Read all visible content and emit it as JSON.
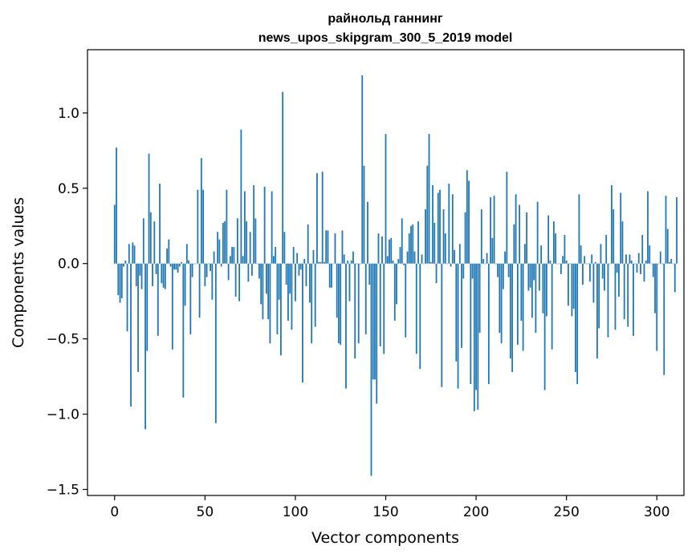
{
  "chart_data": {
    "type": "bar",
    "title_lines": [
      "райнольд ганнинг",
      "news_upos_skipgram_300_5_2019 model"
    ],
    "xlabel": "Vector components",
    "ylabel": "Components values",
    "xlim": [
      -15,
      315
    ],
    "ylim": [
      -1.54,
      1.42
    ],
    "x_ticks": [
      0,
      50,
      100,
      150,
      200,
      250,
      300
    ],
    "x_tick_labels": [
      "0",
      "50",
      "100",
      "150",
      "200",
      "250",
      "300"
    ],
    "y_ticks": [
      -1.5,
      -1.0,
      -0.5,
      0.0,
      0.5,
      1.0
    ],
    "y_tick_labels": [
      "−1.5",
      "−1.0",
      "−0.5",
      "0.0",
      "0.5",
      "1.0"
    ],
    "bar_color": "#1f77b4",
    "grid": false,
    "legend": "none",
    "values": [
      0.39,
      0.77,
      -0.21,
      -0.26,
      -0.23,
      -0.02,
      0.02,
      -0.45,
      0.13,
      -0.95,
      0.14,
      0.12,
      -0.15,
      -0.72,
      -0.08,
      -0.17,
      0.3,
      -1.1,
      -0.58,
      0.73,
      0.34,
      -0.15,
      0.28,
      -0.07,
      -0.48,
      0.53,
      -0.13,
      -0.16,
      -0.17,
      0.1,
      0.16,
      -0.02,
      -0.57,
      -0.04,
      -0.04,
      -0.06,
      -0.02,
      0.01,
      -0.89,
      -0.28,
      0.13,
      0.02,
      -0.47,
      -0.09,
      0.0,
      0.0,
      0.49,
      -0.36,
      0.7,
      0.49,
      -0.15,
      -0.09,
      0.0,
      -0.05,
      -0.24,
      0.08,
      -1.06,
      0.21,
      0.16,
      -0.02,
      0.27,
      0.28,
      0.49,
      -0.11,
      0.05,
      0.11,
      0.11,
      -0.22,
      0.3,
      -0.25,
      0.89,
      0.05,
      0.48,
      0.28,
      -0.12,
      0.21,
      -0.08,
      0.52,
      0.3,
      0.0,
      -0.1,
      -0.27,
      -0.37,
      0.51,
      -0.2,
      -0.37,
      -0.53,
      0.48,
      0.05,
      0.11,
      -0.47,
      -0.24,
      -0.61,
      1.14,
      0.21,
      -0.14,
      -0.38,
      -0.2,
      -0.44,
      0.11,
      -0.25,
      0.07,
      -0.08,
      -0.04,
      -0.79,
      0.03,
      -0.15,
      0.26,
      -0.26,
      -0.53,
      0.09,
      -0.42,
      0.6,
      0.01,
      0.01,
      0.61,
      0.01,
      0.22,
      0.22,
      -0.16,
      -0.16,
      0.0,
      0.2,
      -0.36,
      -0.53,
      -0.54,
      0.22,
      0.06,
      -0.83,
      0.02,
      -0.25,
      0.02,
      0.08,
      -0.63,
      0.0,
      -0.53,
      0.0,
      1.25,
      0.65,
      -0.47,
      0.41,
      -0.14,
      -1.41,
      -0.77,
      -0.77,
      -0.93,
      0.2,
      -0.55,
      0.18,
      -0.6,
      0.86,
      0.05,
      0.16,
      0.17,
      0.02,
      -0.38,
      -0.27,
      0.03,
      0.11,
      0.3,
      -0.01,
      -0.49,
      0.08,
      0.2,
      0.25,
      0.26,
      0.08,
      -0.6,
      0.28,
      -0.7,
      0.06,
      0.0,
      0.36,
      0.65,
      0.86,
      0.01,
      0.52,
      0.27,
      -0.13,
      0.47,
      0.49,
      -0.82,
      0.36,
      0.2,
      0.0,
      0.53,
      -0.02,
      0.46,
      0.09,
      -0.65,
      -0.83,
      0.13,
      -0.56,
      -0.1,
      0.34,
      0.62,
      0.55,
      -0.8,
      -0.1,
      -0.98,
      -0.84,
      -0.97,
      -0.46,
      0.36,
      0.03,
      0.0,
      0.07,
      -0.8,
      0.44,
      0.17,
      0.45,
      0.0,
      -0.09,
      -0.46,
      -0.53,
      -0.17,
      0.08,
      0.61,
      -0.09,
      -0.63,
      -0.72,
      0.26,
      0.46,
      -0.54,
      0.39,
      -0.38,
      -0.58,
      0.13,
      0.34,
      -0.18,
      -0.16,
      -0.36,
      -0.11,
      -0.46,
      0.41,
      -0.18,
      0.12,
      -0.33,
      -0.84,
      -0.35,
      0.32,
      0.02,
      -0.57,
      0.28,
      0.2,
      0.0,
      0.0,
      -0.07,
      0.05,
      0.19,
      0.02,
      -0.28,
      0.0,
      -0.35,
      -0.3,
      -0.72,
      -0.8,
      0.46,
      0.12,
      -0.14,
      0.05,
      0.0,
      0.0,
      -0.12,
      0.06,
      -0.26,
      0.01,
      -0.63,
      -0.43,
      0.13,
      -0.1,
      -0.18,
      0.19,
      -0.49,
      0.0,
      0.52,
      0.36,
      -0.44,
      -0.06,
      -0.22,
      0.47,
      0.28,
      -0.37,
      0.06,
      -0.42,
      0.06,
      0.02,
      -0.48,
      0.0,
      -0.06,
      0.07,
      -0.07,
      0.19,
      -0.12,
      0.02,
      0.48,
      0.12,
      0.0,
      -0.09,
      -0.33,
      -0.58,
      0.0,
      0.08,
      0.0,
      -0.74,
      0.45,
      0.23,
      0.01,
      0.03,
      0.0,
      -0.19,
      0.44
    ]
  }
}
